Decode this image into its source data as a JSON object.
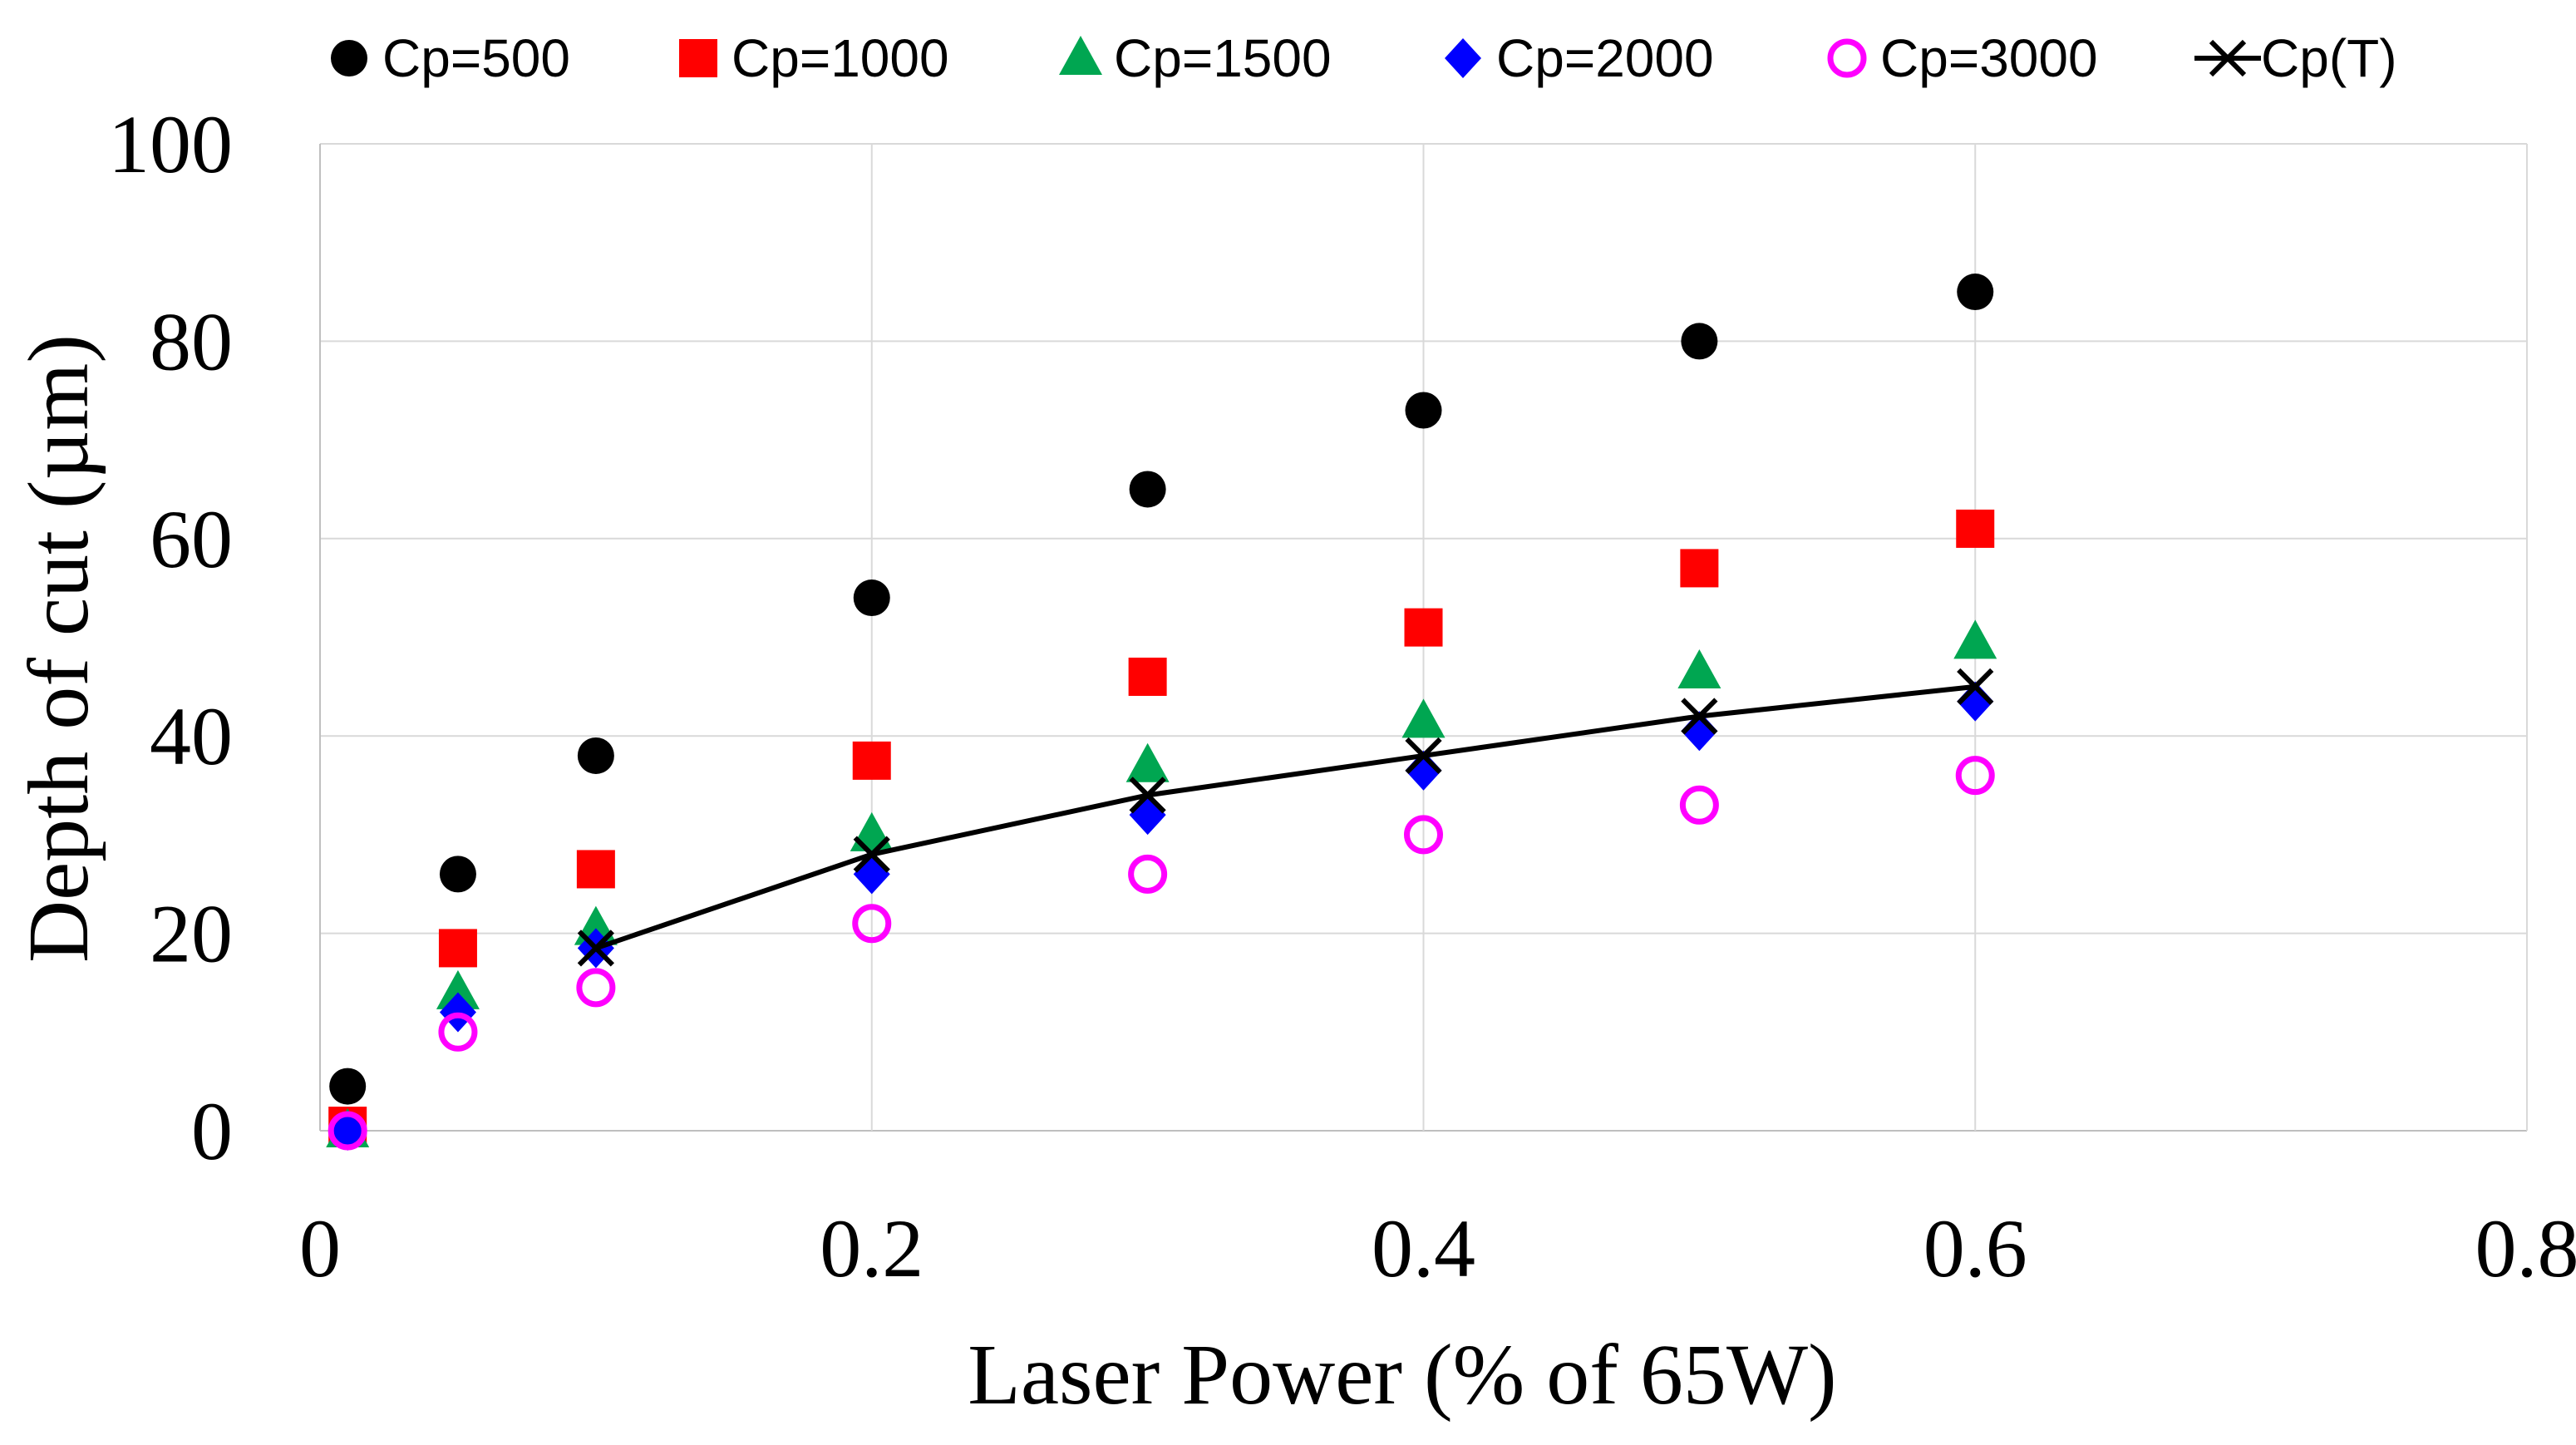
{
  "chart_data": {
    "type": "scatter",
    "title": "",
    "xlabel": "Laser Power (% of 65W)",
    "ylabel": "Depth of cut (µm)",
    "xlim": [
      0,
      0.8
    ],
    "ylim": [
      0,
      100
    ],
    "xticks": [
      0,
      0.2,
      0.4,
      0.6,
      0.8
    ],
    "xtick_labels": [
      "0",
      "0.2",
      "0.4",
      "0.6",
      "0.8"
    ],
    "yticks": [
      0,
      20,
      40,
      60,
      80,
      100
    ],
    "ytick_labels": [
      "0",
      "20",
      "40",
      "60",
      "80",
      "100"
    ],
    "grid": true,
    "legend_position": "top",
    "series": [
      {
        "name": "Cp=500",
        "marker": "circle",
        "color": "#000000",
        "filled": true,
        "x": [
          0.01,
          0.05,
          0.1,
          0.2,
          0.3,
          0.4,
          0.5,
          0.6
        ],
        "y": [
          4.5,
          26,
          38,
          54,
          65,
          73,
          80,
          85
        ]
      },
      {
        "name": "Cp=1000",
        "marker": "square",
        "color": "#ff0000",
        "filled": true,
        "x": [
          0.01,
          0.05,
          0.1,
          0.2,
          0.3,
          0.4,
          0.5,
          0.6
        ],
        "y": [
          0.5,
          18.5,
          26.5,
          37.5,
          46,
          51,
          57,
          61
        ]
      },
      {
        "name": "Cp=1500",
        "marker": "triangle",
        "color": "#00a651",
        "filled": true,
        "x": [
          0.01,
          0.05,
          0.1,
          0.2,
          0.3,
          0.4,
          0.5,
          0.6
        ],
        "y": [
          0,
          14,
          20.5,
          30,
          37,
          41.5,
          46.5,
          49.5
        ]
      },
      {
        "name": "Cp=2000",
        "marker": "diamond",
        "color": "#0000ff",
        "filled": true,
        "x": [
          0.01,
          0.05,
          0.1,
          0.2,
          0.3,
          0.4,
          0.5,
          0.6
        ],
        "y": [
          0,
          12,
          18.5,
          26,
          32,
          36.5,
          40.5,
          43.5
        ]
      },
      {
        "name": "Cp=3000",
        "marker": "circle",
        "color": "#ff00ff",
        "filled": false,
        "x": [
          0.01,
          0.05,
          0.1,
          0.2,
          0.3,
          0.4,
          0.5,
          0.6
        ],
        "y": [
          0,
          10,
          14.5,
          21,
          26,
          30,
          33,
          36
        ]
      },
      {
        "name": "Cp(T)",
        "marker": "x",
        "color": "#000000",
        "filled": false,
        "line": true,
        "x": [
          0.1,
          0.2,
          0.3,
          0.4,
          0.5,
          0.6
        ],
        "y": [
          18.5,
          28,
          34,
          38,
          42,
          45
        ]
      }
    ]
  }
}
